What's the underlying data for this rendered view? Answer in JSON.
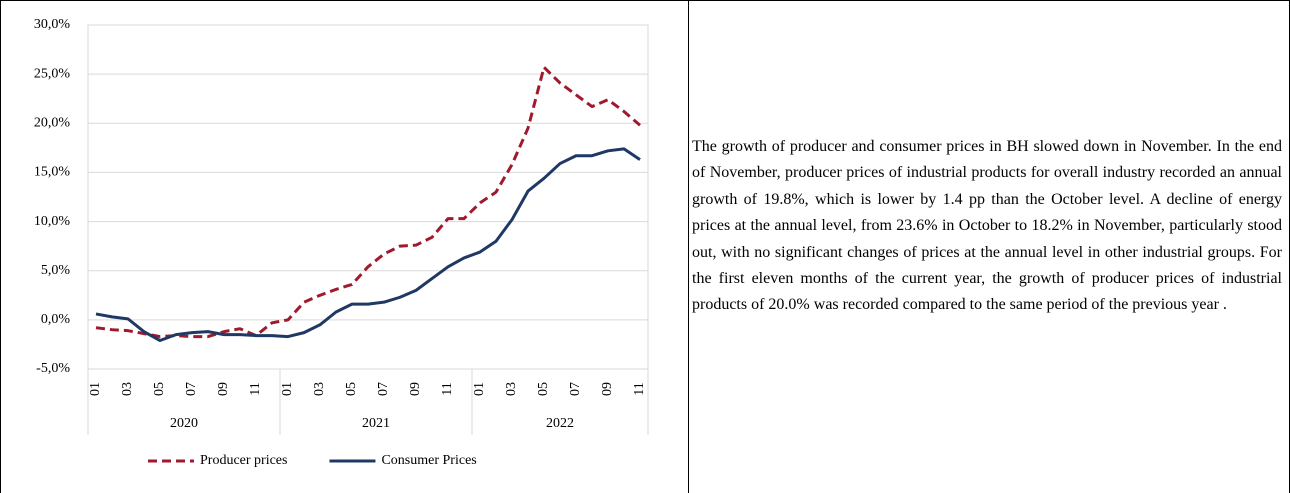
{
  "chart_data": {
    "type": "line",
    "yticks": [
      {
        "value": -5,
        "label": "-5,0%"
      },
      {
        "value": 0,
        "label": "0,0%"
      },
      {
        "value": 5,
        "label": "5,0%"
      },
      {
        "value": 10,
        "label": "10,0%"
      },
      {
        "value": 15,
        "label": "15,0%"
      },
      {
        "value": 20,
        "label": "20,0%"
      },
      {
        "value": 25,
        "label": "25,0%"
      },
      {
        "value": 30,
        "label": "30,0%"
      }
    ],
    "ylim": [
      -5,
      30
    ],
    "grid": true,
    "categories": [
      "01",
      null,
      "03",
      null,
      "05",
      null,
      "07",
      null,
      "09",
      null,
      "11",
      null,
      "01",
      null,
      "03",
      null,
      "05",
      null,
      "07",
      null,
      "09",
      null,
      "11",
      null,
      "01",
      null,
      "03",
      null,
      "05",
      null,
      "07",
      null,
      "09",
      null,
      "11"
    ],
    "category_groups": [
      "2020",
      "2021",
      "2022"
    ],
    "legend": "bottom",
    "series": [
      {
        "name": "Producer prices",
        "color": "#a01a2e",
        "dashed": true,
        "values": [
          -0.8,
          -1.0,
          -1.1,
          -1.4,
          -1.7,
          -1.6,
          -1.7,
          -1.7,
          -1.2,
          -0.9,
          -1.6,
          -0.3,
          0.0,
          1.8,
          2.5,
          3.1,
          3.6,
          5.4,
          6.7,
          7.5,
          7.6,
          8.4,
          10.3,
          10.3,
          11.9,
          13.0,
          15.8,
          19.5,
          25.7,
          24.1,
          22.9,
          21.7,
          22.4,
          21.2,
          19.8
        ]
      },
      {
        "name": "Consumer Prices",
        "color": "#1f3864",
        "dashed": false,
        "values": [
          0.6,
          0.3,
          0.1,
          -1.2,
          -2.1,
          -1.5,
          -1.3,
          -1.2,
          -1.5,
          -1.5,
          -1.6,
          -1.6,
          -1.7,
          -1.3,
          -0.5,
          0.8,
          1.6,
          1.6,
          1.8,
          2.3,
          3.0,
          4.2,
          5.4,
          6.3,
          6.9,
          8.0,
          10.2,
          13.1,
          14.4,
          15.9,
          16.7,
          16.7,
          17.2,
          17.4,
          16.3
        ]
      }
    ]
  },
  "text": "The growth of producer and consumer prices in BH slowed down in November. In the end of November, producer prices of industrial products for overall industry recorded an annual growth of 19.8%, which is lower by 1.4 pp than the October level. A decline of energy prices at the annual level,  from 23.6% in October to 18.2% in November, particularly stood out, with no significant changes of prices at the annual level in other industrial groups.  For the first eleven months of the current year, the growth of producer prices of industrial products of 20.0% was recorded compared to the same period of the previous year ."
}
